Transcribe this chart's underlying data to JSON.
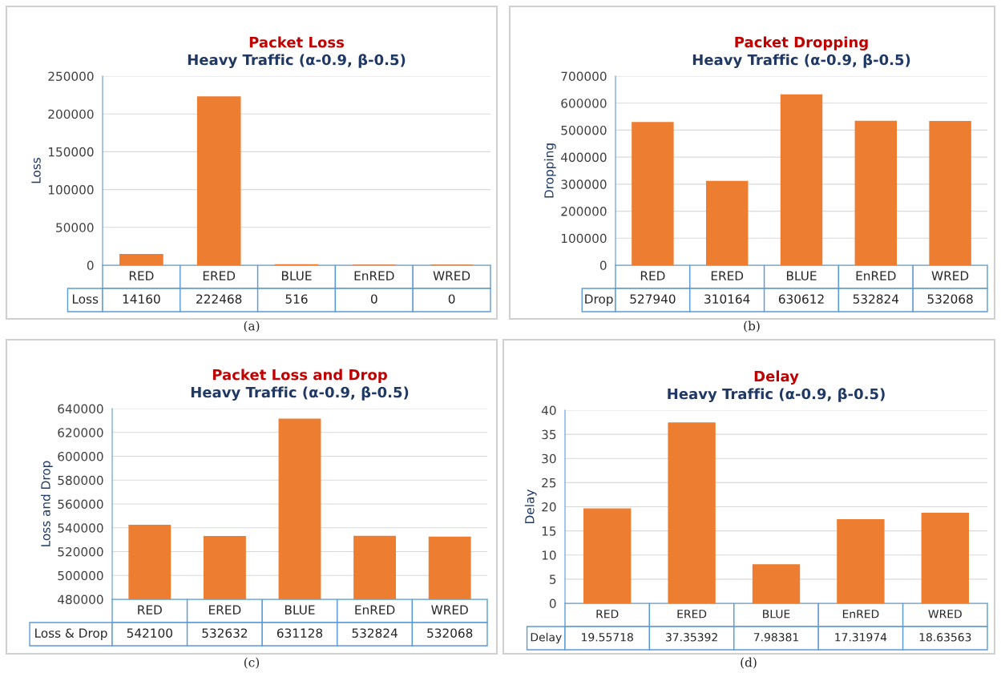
{
  "chart_data": [
    {
      "type": "bar",
      "title": "Packet Loss",
      "subtitle": "Heavy Traffic (α-0.9, β-0.5)",
      "ylabel": "Loss",
      "categories": [
        "RED",
        "ERED",
        "BLUE",
        "EnRED",
        "WRED"
      ],
      "series": [
        {
          "name": "Loss",
          "color": "#ed7d31",
          "values": [
            14160,
            222468,
            516,
            0,
            0
          ]
        }
      ],
      "ylim": [
        0,
        250000
      ],
      "yticks": [
        0,
        50000,
        100000,
        150000,
        200000,
        250000
      ],
      "grid": "y",
      "data_labels": true,
      "annotations": [
        "(a)"
      ]
    },
    {
      "type": "bar",
      "title": "Packet Dropping",
      "subtitle": "Heavy Traffic (α-0.9, β-0.5)",
      "ylabel": "Dropping",
      "categories": [
        "RED",
        "ERED",
        "BLUE",
        "EnRED",
        "WRED"
      ],
      "series": [
        {
          "name": "Drop",
          "color": "#ed7d31",
          "values": [
            527940,
            310164,
            630612,
            532824,
            532068
          ]
        }
      ],
      "ylim": [
        0,
        700000
      ],
      "yticks": [
        0,
        100000,
        200000,
        300000,
        400000,
        500000,
        600000,
        700000
      ],
      "grid": "y",
      "data_labels": true,
      "annotations": [
        "(b)"
      ]
    },
    {
      "type": "bar",
      "title": "Packet Loss and Drop",
      "subtitle": "Heavy Traffic (α-0.9, β-0.5)",
      "ylabel": "Loss and Drop",
      "categories": [
        "RED",
        "ERED",
        "BLUE",
        "EnRED",
        "WRED"
      ],
      "series": [
        {
          "name": "Loss & Drop",
          "color": "#ed7d31",
          "values": [
            542100,
            532632,
            631128,
            532824,
            532068
          ]
        }
      ],
      "ylim": [
        480000,
        640000
      ],
      "yticks": [
        480000,
        500000,
        520000,
        540000,
        560000,
        580000,
        600000,
        620000,
        640000
      ],
      "grid": "y",
      "data_labels": true,
      "annotations": [
        "(c)"
      ]
    },
    {
      "type": "bar",
      "title": "Delay",
      "subtitle": "Heavy Traffic (α-0.9, β-0.5)",
      "ylabel": "Delay",
      "categories": [
        "RED",
        "ERED",
        "BLUE",
        "EnRED",
        "WRED"
      ],
      "series": [
        {
          "name": "Delay",
          "color": "#ed7d31",
          "values": [
            19.55718,
            37.35392,
            7.98381,
            17.31974,
            18.63563
          ]
        }
      ],
      "ylim": [
        0,
        40
      ],
      "yticks": [
        0,
        5,
        10,
        15,
        20,
        25,
        30,
        35,
        40
      ],
      "grid": "y",
      "data_labels": true,
      "annotations": [
        "(d)"
      ]
    }
  ]
}
